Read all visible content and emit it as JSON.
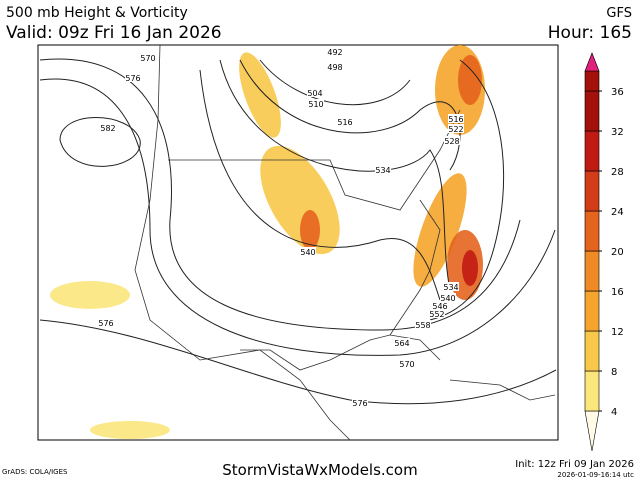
{
  "header": {
    "title": "500 mb Height & Vorticity",
    "valid": "Valid: 09z Fri 16 Jan 2026",
    "model": "GFS",
    "hour": "Hour: 165"
  },
  "contour_labels": [
    "570",
    "576",
    "582",
    "576",
    "492",
    "498",
    "504",
    "510",
    "516",
    "534",
    "540",
    "516",
    "522",
    "528",
    "534",
    "540",
    "546",
    "552",
    "558",
    "564",
    "570",
    "576"
  ],
  "colorbar": {
    "ticks": [
      4,
      8,
      12,
      16,
      20,
      24,
      28,
      32,
      36
    ],
    "colors": [
      "#fffbe6",
      "#fbe67c",
      "#f8c84a",
      "#f5a52b",
      "#f08a24",
      "#e4641e",
      "#d33c19",
      "#c01b12",
      "#a4100c",
      "#e0207a"
    ]
  },
  "footer": {
    "credit": "GrADS: COLA/IGES",
    "site": "StormVistaWxModels.com",
    "init": "Init: 12z Fri 09 Jan 2026",
    "stamp": "2026-01-09-16:14 utc"
  }
}
